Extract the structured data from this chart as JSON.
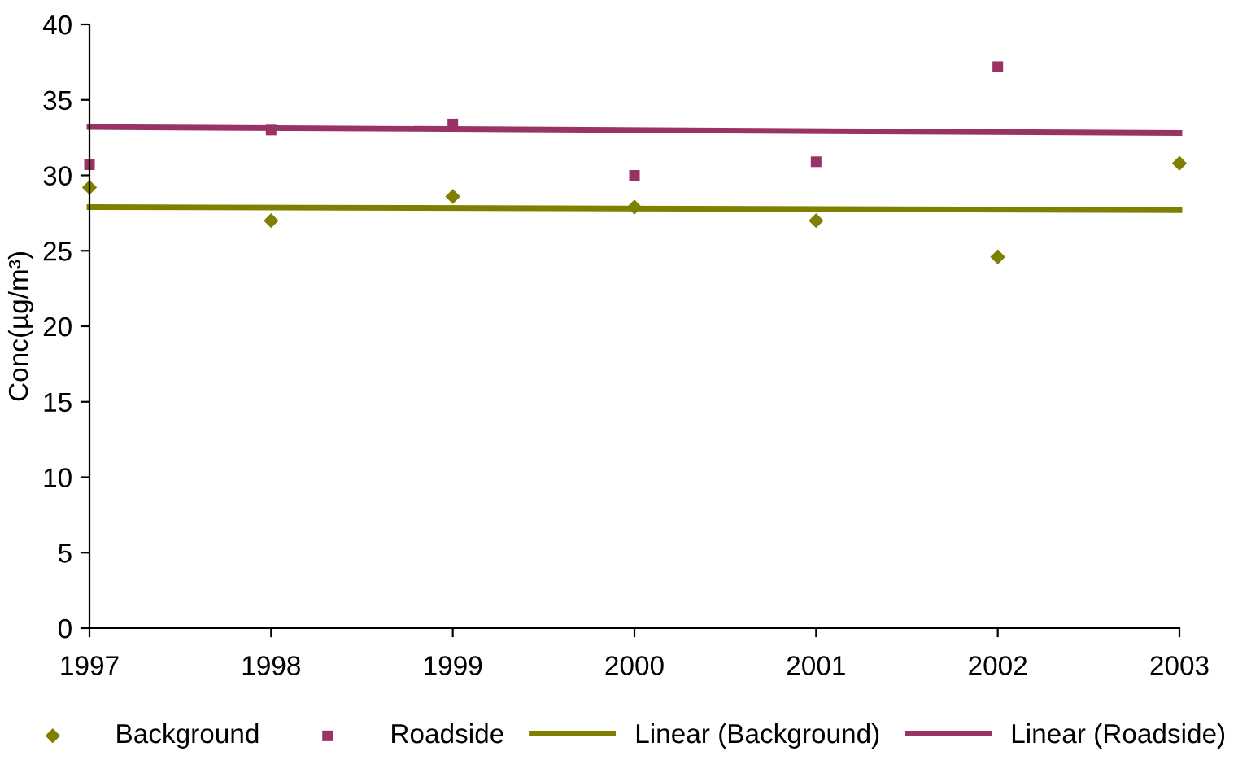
{
  "chart_data": {
    "ylabel": "Conc(µg/m³)",
    "x": [
      1997,
      1998,
      1999,
      2000,
      2001,
      2002,
      2003
    ],
    "xlim": [
      1997,
      2003
    ],
    "xticks": [
      1997,
      1998,
      1999,
      2000,
      2001,
      2002,
      2003
    ],
    "ylim": [
      0,
      40
    ],
    "yticks": [
      0,
      5,
      10,
      15,
      20,
      25,
      30,
      35,
      40
    ],
    "grid": false,
    "legend": "bottom",
    "type": "line",
    "series": [
      {
        "name": "Background",
        "type": "scatter",
        "marker": "diamond",
        "color": "#808000",
        "values": [
          29.2,
          27.0,
          28.6,
          27.9,
          27.0,
          24.6,
          30.8
        ]
      },
      {
        "name": "Roadside",
        "type": "scatter",
        "marker": "square",
        "color": "#993366",
        "values": [
          30.7,
          33.0,
          33.4,
          30.0,
          30.9,
          37.2,
          null
        ]
      },
      {
        "name": "Linear (Background)",
        "marker": "none",
        "line_style": "solid",
        "color": "#808000",
        "values": [
          27.9,
          null,
          null,
          null,
          null,
          null,
          27.7
        ]
      },
      {
        "name": "Linear (Roadside)",
        "marker": "none",
        "line_style": "solid",
        "color": "#993366",
        "values": [
          33.2,
          null,
          null,
          null,
          null,
          null,
          32.8
        ]
      }
    ]
  }
}
